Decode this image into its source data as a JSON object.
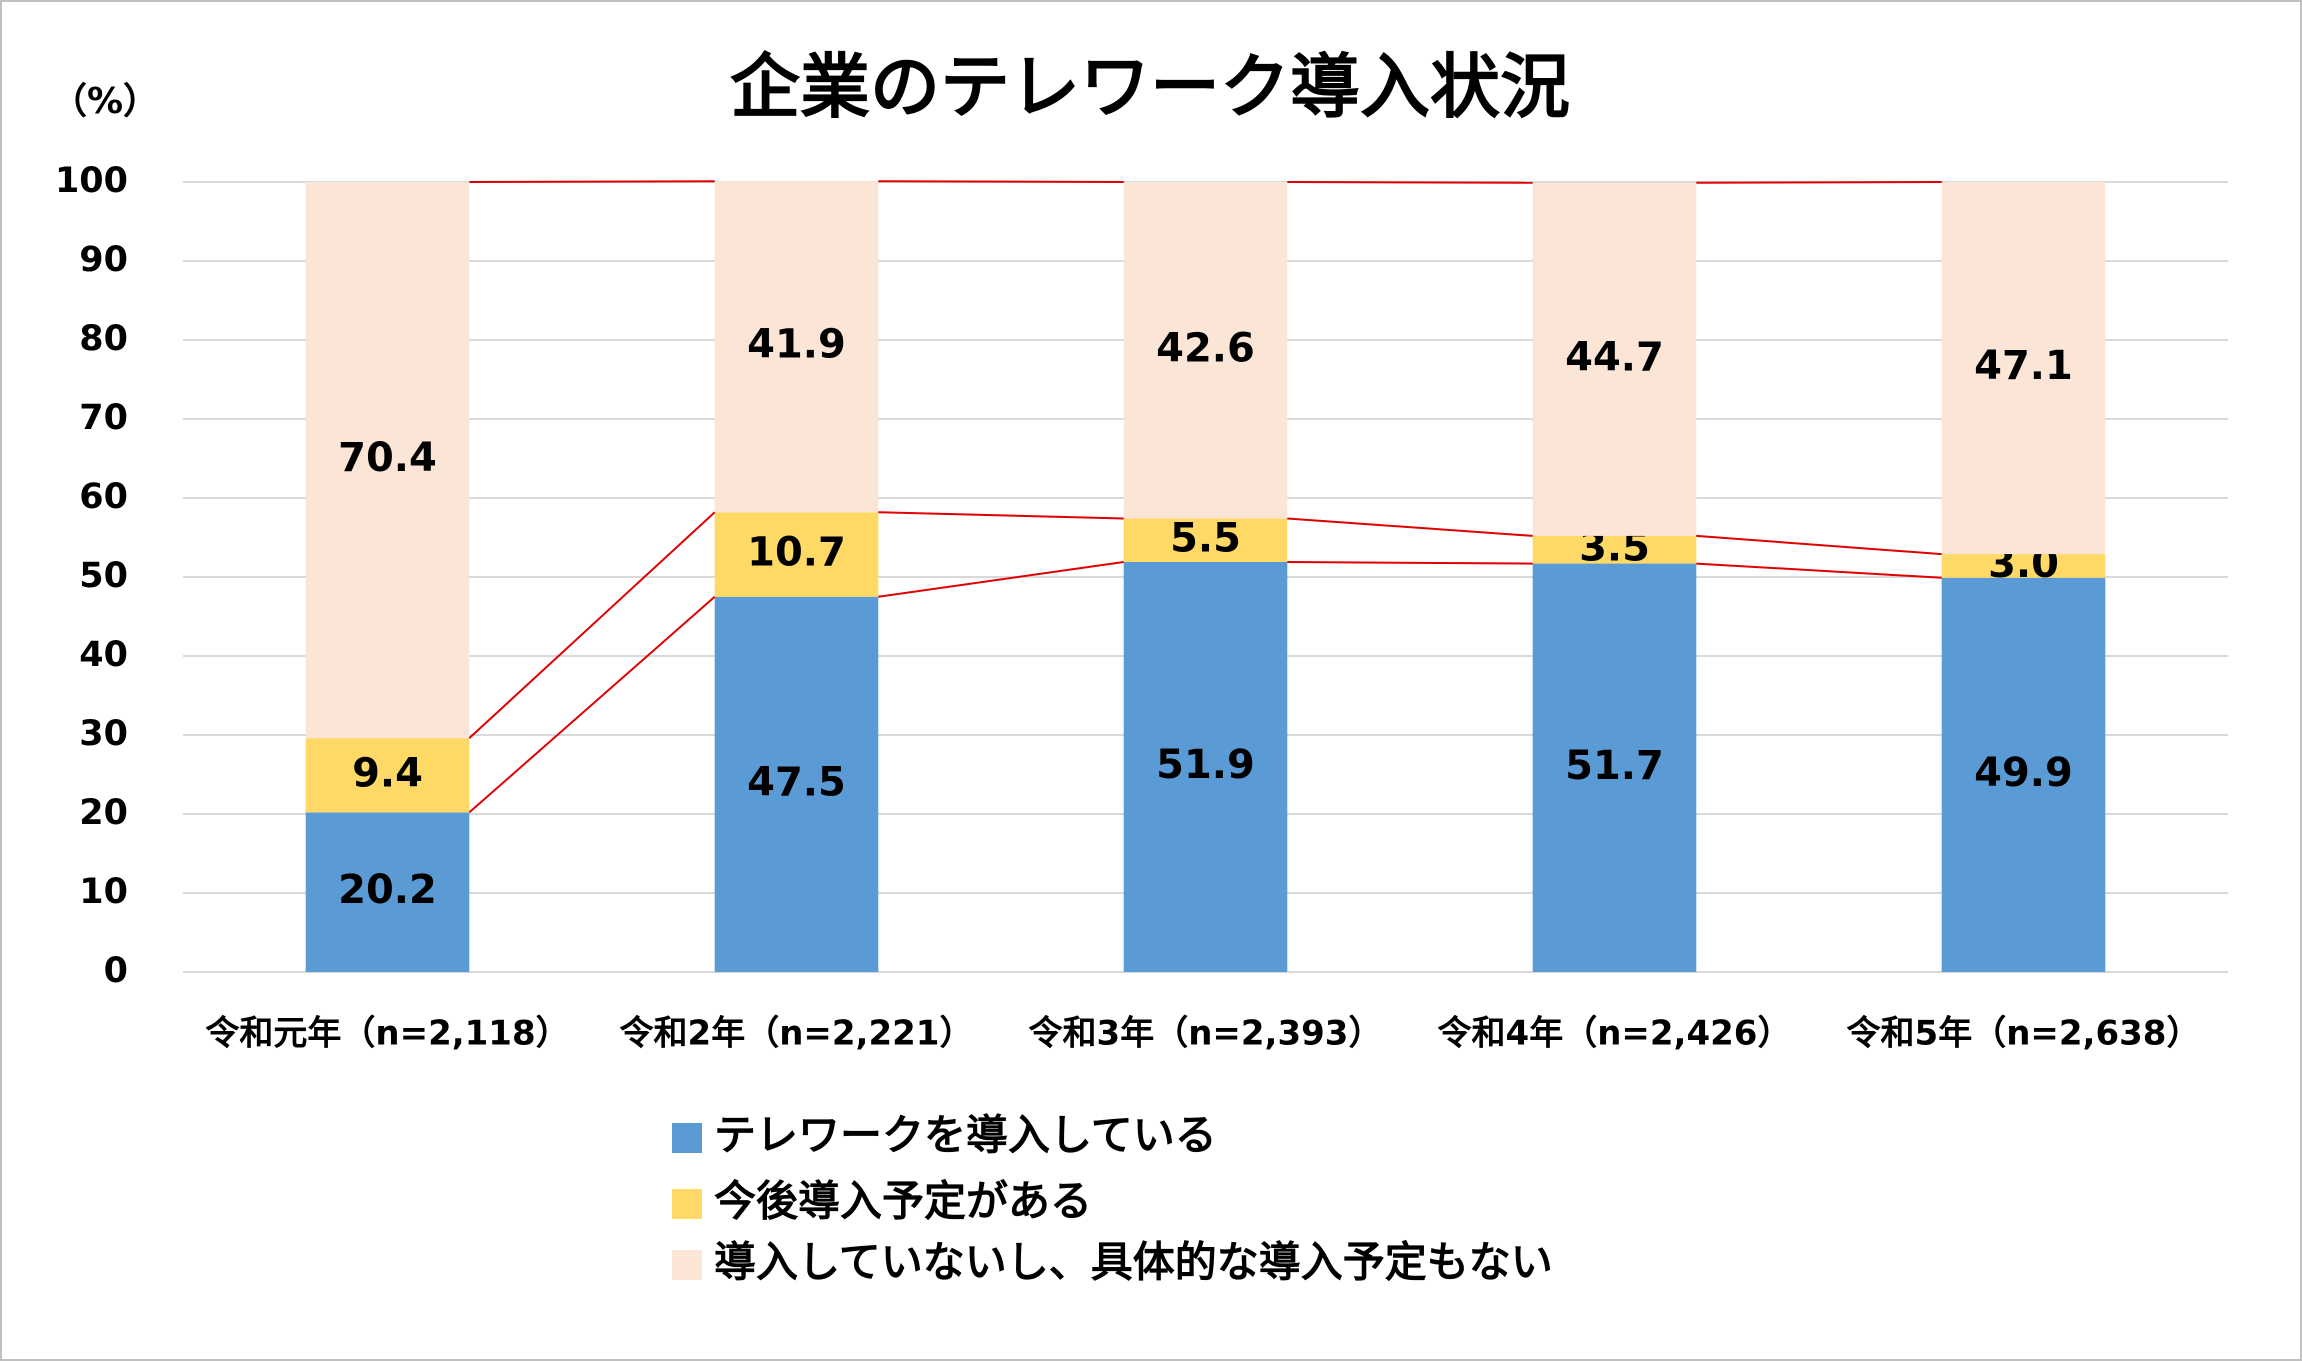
{
  "chart_data": {
    "type": "stacked_bar",
    "title": "企業のテレワーク導入状況",
    "y_unit_label": "（%）",
    "categories": [
      "令和元年（n=2,118）",
      "令和2年（n=2,221）",
      "令和3年（n=2,393）",
      "令和4年（n=2,426）",
      "令和5年（n=2,638）"
    ],
    "series": [
      {
        "name": "テレワークを導入している",
        "color": "#5b9bd5",
        "values": [
          20.2,
          47.5,
          51.9,
          51.7,
          49.9
        ],
        "value_labels": [
          "20.2",
          "47.5",
          "51.9",
          "51.7",
          "49.9"
        ]
      },
      {
        "name": "今後導入予定がある",
        "color": "#ffd966",
        "values": [
          9.4,
          10.7,
          5.5,
          3.5,
          3.0
        ],
        "value_labels": [
          "9.4",
          "10.7",
          "5.5",
          "3.5",
          "3.0"
        ]
      },
      {
        "name": "導入していないし、具体的な導入予定もない",
        "color": "#fbe5d6",
        "values": [
          70.4,
          41.9,
          42.6,
          44.7,
          47.1
        ],
        "value_labels": [
          "70.4",
          "41.9",
          "42.6",
          "44.7",
          "47.1"
        ]
      }
    ],
    "connector_color": "#e00000",
    "ylim": [
      0,
      100
    ],
    "yticks": [
      0,
      10,
      20,
      30,
      40,
      50,
      60,
      70,
      80,
      90,
      100
    ],
    "grid": true,
    "legend": "bottom"
  }
}
